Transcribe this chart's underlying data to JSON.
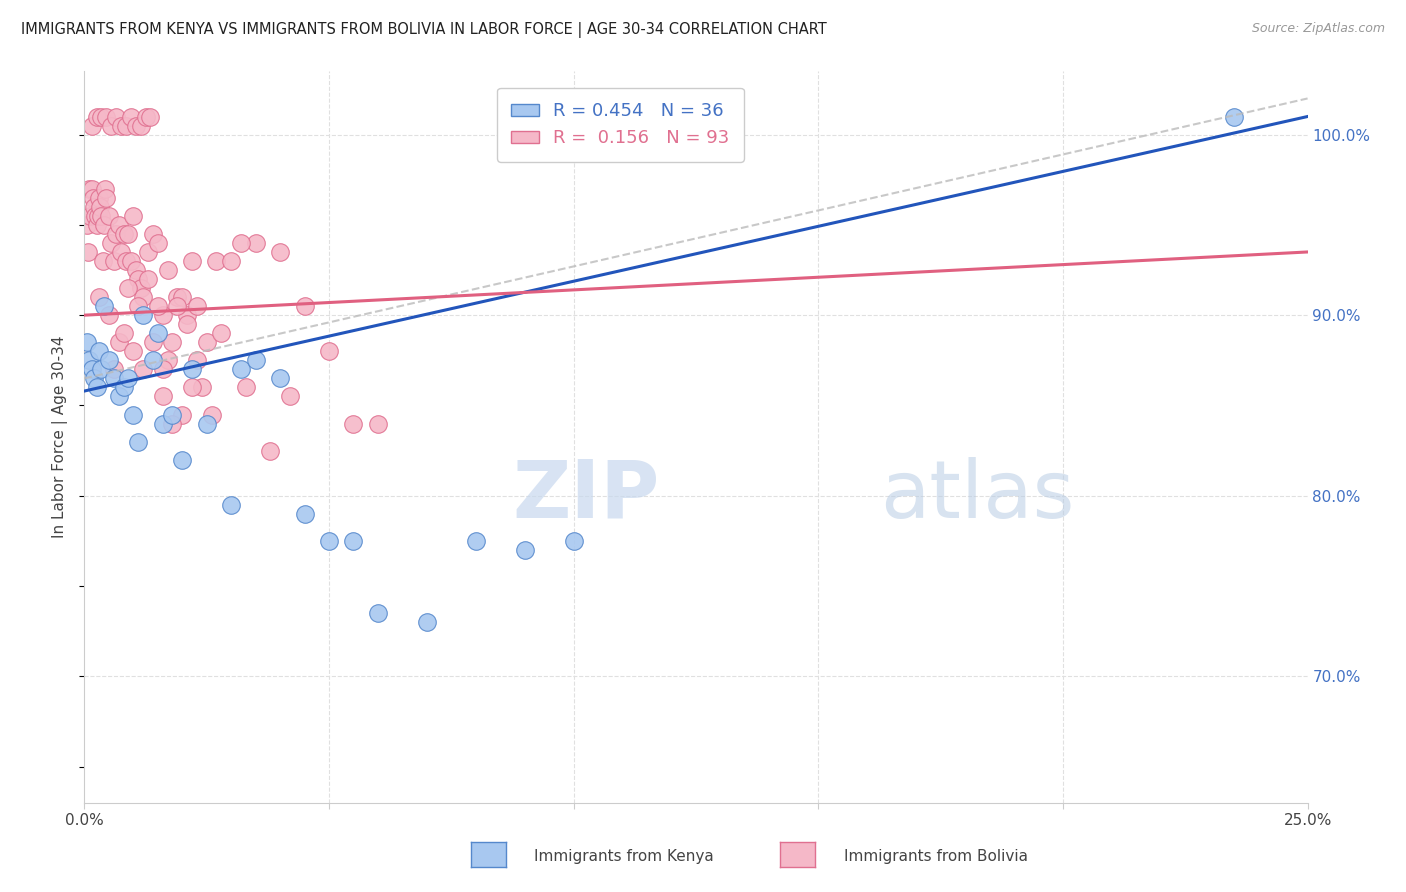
{
  "title": "IMMIGRANTS FROM KENYA VS IMMIGRANTS FROM BOLIVIA IN LABOR FORCE | AGE 30-34 CORRELATION CHART",
  "source": "Source: ZipAtlas.com",
  "ylabel": "In Labor Force | Age 30-34",
  "xlim": [
    0.0,
    25.0
  ],
  "ylim": [
    63.0,
    103.5
  ],
  "kenya_color": "#a8c8f0",
  "bolivia_color": "#f5b8c8",
  "kenya_edge_color": "#5588cc",
  "bolivia_edge_color": "#e07090",
  "kenya_line_color": "#2255bb",
  "bolivia_line_color": "#e06080",
  "dash_line_color": "#bbbbbb",
  "grid_color": "#e0e0e0",
  "legend_kenya_label": "R = 0.454   N = 36",
  "legend_bolivia_label": "R =  0.156   N = 93",
  "right_tick_color": "#4472c4",
  "kenya_line_x0": 0.0,
  "kenya_line_y0": 85.8,
  "kenya_line_x1": 25.0,
  "kenya_line_y1": 101.0,
  "bolivia_line_x0": 0.0,
  "bolivia_line_y0": 90.0,
  "bolivia_line_x1": 25.0,
  "bolivia_line_y1": 93.5,
  "dash_line_x0": 0.0,
  "dash_line_y0": 86.5,
  "dash_line_x1": 25.0,
  "dash_line_y1": 102.0,
  "kenya_x": [
    0.05,
    0.1,
    0.15,
    0.2,
    0.25,
    0.3,
    0.35,
    0.4,
    0.5,
    0.6,
    0.7,
    0.8,
    0.9,
    1.0,
    1.1,
    1.2,
    1.4,
    1.5,
    1.6,
    1.8,
    2.0,
    2.2,
    2.5,
    3.0,
    3.2,
    3.5,
    4.0,
    4.5,
    5.0,
    5.5,
    6.0,
    7.0,
    8.0,
    9.0,
    10.0,
    23.5
  ],
  "kenya_y": [
    88.5,
    87.5,
    87.0,
    86.5,
    86.0,
    88.0,
    87.0,
    90.5,
    87.5,
    86.5,
    85.5,
    86.0,
    86.5,
    84.5,
    83.0,
    90.0,
    87.5,
    89.0,
    84.0,
    84.5,
    82.0,
    87.0,
    84.0,
    79.5,
    87.0,
    87.5,
    86.5,
    79.0,
    77.5,
    77.5,
    73.5,
    73.0,
    77.5,
    77.0,
    77.5,
    101.0
  ],
  "bolivia_x": [
    0.05,
    0.08,
    0.1,
    0.12,
    0.15,
    0.18,
    0.2,
    0.22,
    0.25,
    0.28,
    0.3,
    0.32,
    0.35,
    0.38,
    0.4,
    0.42,
    0.45,
    0.5,
    0.55,
    0.6,
    0.65,
    0.7,
    0.75,
    0.8,
    0.85,
    0.9,
    0.95,
    1.0,
    1.05,
    1.1,
    1.15,
    1.2,
    1.3,
    1.4,
    1.5,
    1.6,
    1.7,
    1.8,
    1.9,
    2.0,
    2.1,
    2.2,
    2.3,
    2.5,
    2.7,
    3.0,
    3.5,
    4.0,
    4.5,
    5.0,
    5.5,
    0.3,
    0.5,
    0.7,
    0.9,
    1.1,
    1.3,
    1.5,
    1.7,
    1.9,
    2.1,
    2.3,
    2.8,
    3.2,
    0.6,
    0.8,
    1.0,
    1.2,
    1.4,
    1.6,
    2.0,
    2.4,
    3.8,
    6.0,
    0.15,
    0.25,
    0.35,
    0.45,
    0.55,
    0.65,
    0.75,
    0.85,
    0.95,
    1.05,
    1.15,
    1.25,
    1.35,
    1.6,
    1.8,
    2.2,
    2.6,
    3.3,
    4.2
  ],
  "bolivia_y": [
    95.0,
    93.5,
    97.0,
    95.5,
    97.0,
    96.5,
    96.0,
    95.5,
    95.0,
    95.5,
    96.5,
    96.0,
    95.5,
    93.0,
    95.0,
    97.0,
    96.5,
    95.5,
    94.0,
    93.0,
    94.5,
    95.0,
    93.5,
    94.5,
    93.0,
    94.5,
    93.0,
    95.5,
    92.5,
    92.0,
    91.5,
    91.0,
    93.5,
    94.5,
    94.0,
    90.0,
    92.5,
    88.5,
    91.0,
    91.0,
    90.0,
    93.0,
    90.5,
    88.5,
    93.0,
    93.0,
    94.0,
    93.5,
    90.5,
    88.0,
    84.0,
    91.0,
    90.0,
    88.5,
    91.5,
    90.5,
    92.0,
    90.5,
    87.5,
    90.5,
    89.5,
    87.5,
    89.0,
    94.0,
    87.0,
    89.0,
    88.0,
    87.0,
    88.5,
    85.5,
    84.5,
    86.0,
    82.5,
    84.0,
    100.5,
    101.0,
    101.0,
    101.0,
    100.5,
    101.0,
    100.5,
    100.5,
    101.0,
    100.5,
    100.5,
    101.0,
    101.0,
    87.0,
    84.0,
    86.0,
    84.5,
    86.0,
    85.5
  ]
}
